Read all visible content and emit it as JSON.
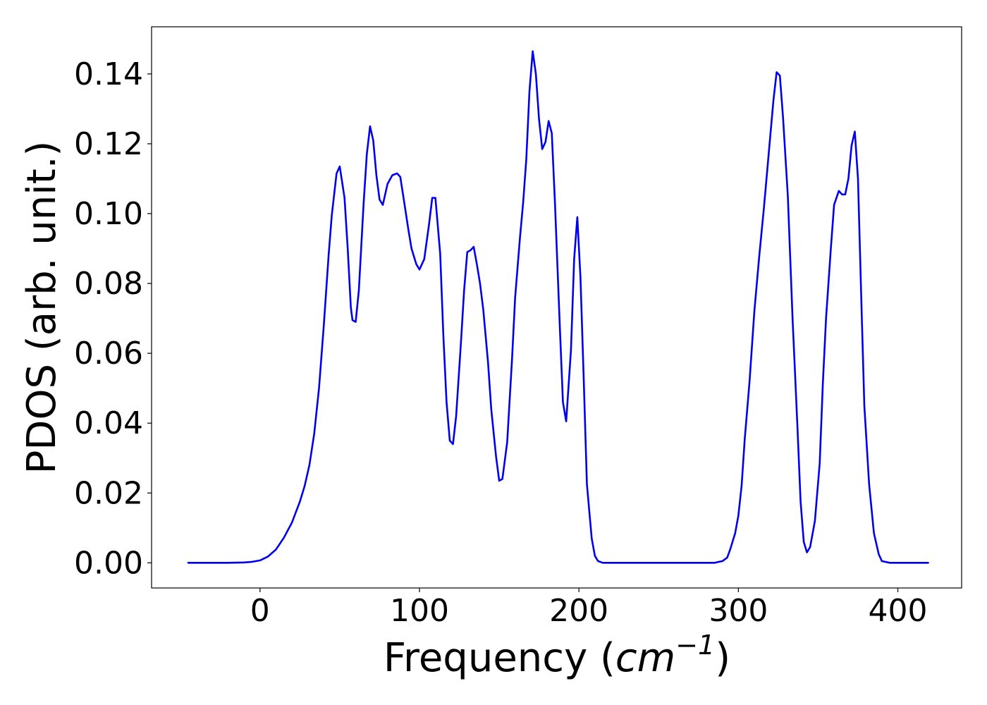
{
  "chart_data": {
    "type": "line",
    "title": "",
    "xlabel": {
      "prefix": "Frequency (",
      "math_base": "cm",
      "math_superscript": "−1",
      "suffix": ")"
    },
    "ylabel": "PDOS (arb. unit.)",
    "xlim": [
      -68,
      440
    ],
    "ylim": [
      -0.0072,
      0.1535
    ],
    "xticks": [
      {
        "value": 0,
        "label": "0"
      },
      {
        "value": 100,
        "label": "100"
      },
      {
        "value": 200,
        "label": "200"
      },
      {
        "value": 300,
        "label": "300"
      },
      {
        "value": 400,
        "label": "400"
      }
    ],
    "yticks": [
      {
        "value": 0.0,
        "label": "0.00"
      },
      {
        "value": 0.02,
        "label": "0.02"
      },
      {
        "value": 0.04,
        "label": "0.04"
      },
      {
        "value": 0.06,
        "label": "0.06"
      },
      {
        "value": 0.08,
        "label": "0.08"
      },
      {
        "value": 0.1,
        "label": "0.10"
      },
      {
        "value": 0.12,
        "label": "0.12"
      },
      {
        "value": 0.14,
        "label": "0.14"
      }
    ],
    "grid": false,
    "legend": "none",
    "series": [
      {
        "color": "#0000ee",
        "x": [
          -45,
          -20,
          -10,
          -5,
          0,
          5,
          10,
          15,
          20,
          25,
          28,
          31,
          34,
          37,
          40,
          43,
          45,
          48,
          50,
          53,
          55,
          57,
          58,
          60,
          62,
          65,
          67,
          69,
          71,
          73,
          75,
          77,
          80,
          83,
          86,
          88,
          90,
          93,
          95,
          98,
          100,
          103,
          106,
          108,
          110,
          113,
          115,
          117,
          119,
          121,
          123,
          126,
          128,
          130,
          132,
          134,
          136,
          138,
          140,
          143,
          145,
          148,
          150,
          152,
          155,
          158,
          160,
          163,
          165,
          167,
          169,
          171,
          173,
          175,
          177,
          179,
          181,
          183,
          185,
          188,
          190,
          192,
          195,
          197,
          199,
          201,
          203,
          205,
          208,
          210,
          212,
          215,
          218,
          230,
          250,
          270,
          285,
          290,
          293,
          295,
          298,
          300,
          302,
          304,
          307,
          310,
          313,
          316,
          319,
          322,
          324,
          326,
          328,
          331,
          334,
          337,
          339,
          341,
          343,
          345,
          348,
          351,
          353,
          355,
          358,
          360,
          363,
          365,
          367,
          369,
          371,
          373,
          375,
          377,
          379,
          382,
          385,
          388,
          390,
          395,
          400,
          419
        ],
        "y": [
          0.0,
          0.0,
          0.0001,
          0.0003,
          0.0007,
          0.0018,
          0.0038,
          0.0072,
          0.0115,
          0.0175,
          0.022,
          0.028,
          0.037,
          0.05,
          0.068,
          0.088,
          0.0995,
          0.1115,
          0.1135,
          0.1045,
          0.09,
          0.073,
          0.0695,
          0.069,
          0.078,
          0.103,
          0.117,
          0.125,
          0.121,
          0.111,
          0.104,
          0.1025,
          0.1085,
          0.111,
          0.1115,
          0.1105,
          0.1045,
          0.0955,
          0.09,
          0.0855,
          0.084,
          0.087,
          0.097,
          0.1045,
          0.1045,
          0.0885,
          0.065,
          0.046,
          0.035,
          0.034,
          0.042,
          0.063,
          0.078,
          0.089,
          0.0895,
          0.0905,
          0.0855,
          0.08,
          0.0725,
          0.0575,
          0.044,
          0.0305,
          0.0235,
          0.024,
          0.0345,
          0.058,
          0.076,
          0.093,
          0.103,
          0.1155,
          0.135,
          0.1465,
          0.14,
          0.127,
          0.1185,
          0.1205,
          0.1265,
          0.123,
          0.103,
          0.068,
          0.046,
          0.0405,
          0.061,
          0.087,
          0.099,
          0.0815,
          0.0525,
          0.0225,
          0.007,
          0.002,
          0.0005,
          0.0,
          0.0,
          0.0,
          0.0,
          0.0,
          0.0,
          0.0005,
          0.0015,
          0.004,
          0.0085,
          0.0135,
          0.022,
          0.0355,
          0.052,
          0.072,
          0.0875,
          0.1015,
          0.117,
          0.1325,
          0.1405,
          0.1395,
          0.1275,
          0.105,
          0.07,
          0.0395,
          0.0175,
          0.006,
          0.003,
          0.0045,
          0.012,
          0.0285,
          0.0515,
          0.07,
          0.09,
          0.1025,
          0.1065,
          0.1055,
          0.1055,
          0.11,
          0.1195,
          0.1235,
          0.11,
          0.077,
          0.045,
          0.0225,
          0.0085,
          0.0025,
          0.0005,
          0.0,
          0.0,
          0.0
        ]
      }
    ]
  }
}
